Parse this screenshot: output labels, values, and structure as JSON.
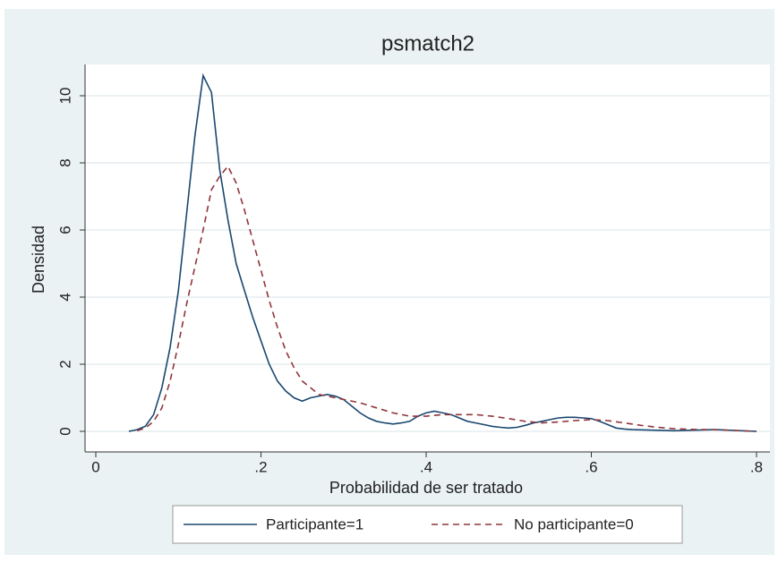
{
  "chart_data": {
    "type": "line",
    "title": "psmatch2",
    "x_label": "Probabilidad de ser tratado",
    "y_label": "Densidad",
    "xlim": [
      0,
      0.8
    ],
    "ylim": [
      0,
      10
    ],
    "xticks": [
      {
        "value": 0,
        "label": "0"
      },
      {
        "value": 0.2,
        "label": ".2"
      },
      {
        "value": 0.4,
        "label": ".4"
      },
      {
        "value": 0.6,
        "label": ".6"
      },
      {
        "value": 0.8,
        "label": ".8"
      }
    ],
    "yticks": [
      0,
      2,
      4,
      6,
      8,
      10
    ],
    "grid": true,
    "legend": "bottom",
    "series": [
      {
        "name": "Participante=1",
        "color": "#1a476f",
        "dashed": false,
        "x": [
          0.04,
          0.05,
          0.06,
          0.07,
          0.08,
          0.09,
          0.1,
          0.11,
          0.12,
          0.13,
          0.14,
          0.15,
          0.16,
          0.17,
          0.18,
          0.19,
          0.2,
          0.21,
          0.22,
          0.23,
          0.24,
          0.25,
          0.26,
          0.27,
          0.28,
          0.29,
          0.3,
          0.31,
          0.32,
          0.33,
          0.34,
          0.35,
          0.36,
          0.37,
          0.38,
          0.39,
          0.4,
          0.41,
          0.42,
          0.43,
          0.44,
          0.45,
          0.46,
          0.47,
          0.48,
          0.49,
          0.5,
          0.51,
          0.52,
          0.53,
          0.54,
          0.55,
          0.56,
          0.57,
          0.58,
          0.59,
          0.6,
          0.61,
          0.62,
          0.63,
          0.64,
          0.65,
          0.7,
          0.75,
          0.8
        ],
        "values": [
          0.0,
          0.05,
          0.15,
          0.5,
          1.3,
          2.5,
          4.2,
          6.5,
          8.8,
          10.6,
          10.1,
          7.8,
          6.3,
          5.0,
          4.2,
          3.4,
          2.7,
          2.0,
          1.5,
          1.2,
          1.0,
          0.9,
          1.0,
          1.05,
          1.1,
          1.05,
          0.95,
          0.75,
          0.55,
          0.4,
          0.3,
          0.25,
          0.22,
          0.25,
          0.3,
          0.45,
          0.55,
          0.6,
          0.55,
          0.5,
          0.4,
          0.3,
          0.25,
          0.2,
          0.15,
          0.12,
          0.1,
          0.12,
          0.18,
          0.25,
          0.3,
          0.35,
          0.4,
          0.42,
          0.42,
          0.4,
          0.38,
          0.3,
          0.2,
          0.1,
          0.07,
          0.05,
          0.02,
          0.05,
          0.0
        ]
      },
      {
        "name": "No participante=0",
        "color": "#90353b",
        "dashed": true,
        "x": [
          0.05,
          0.06,
          0.07,
          0.08,
          0.09,
          0.1,
          0.11,
          0.12,
          0.13,
          0.14,
          0.15,
          0.16,
          0.17,
          0.18,
          0.19,
          0.2,
          0.21,
          0.22,
          0.23,
          0.24,
          0.25,
          0.26,
          0.27,
          0.28,
          0.29,
          0.3,
          0.32,
          0.34,
          0.36,
          0.38,
          0.4,
          0.42,
          0.44,
          0.46,
          0.48,
          0.5,
          0.52,
          0.54,
          0.56,
          0.58,
          0.6,
          0.62,
          0.64,
          0.66,
          0.68,
          0.7,
          0.72,
          0.74,
          0.76,
          0.78,
          0.8
        ],
        "values": [
          0.02,
          0.1,
          0.3,
          0.7,
          1.5,
          2.6,
          3.8,
          4.9,
          6.0,
          7.2,
          7.6,
          7.9,
          7.4,
          6.6,
          5.7,
          4.8,
          3.9,
          3.1,
          2.4,
          1.9,
          1.5,
          1.3,
          1.1,
          1.05,
          1.0,
          0.95,
          0.85,
          0.7,
          0.55,
          0.45,
          0.45,
          0.5,
          0.5,
          0.5,
          0.45,
          0.38,
          0.3,
          0.25,
          0.28,
          0.32,
          0.35,
          0.32,
          0.25,
          0.18,
          0.12,
          0.08,
          0.06,
          0.05,
          0.04,
          0.02,
          0.0
        ]
      }
    ]
  }
}
